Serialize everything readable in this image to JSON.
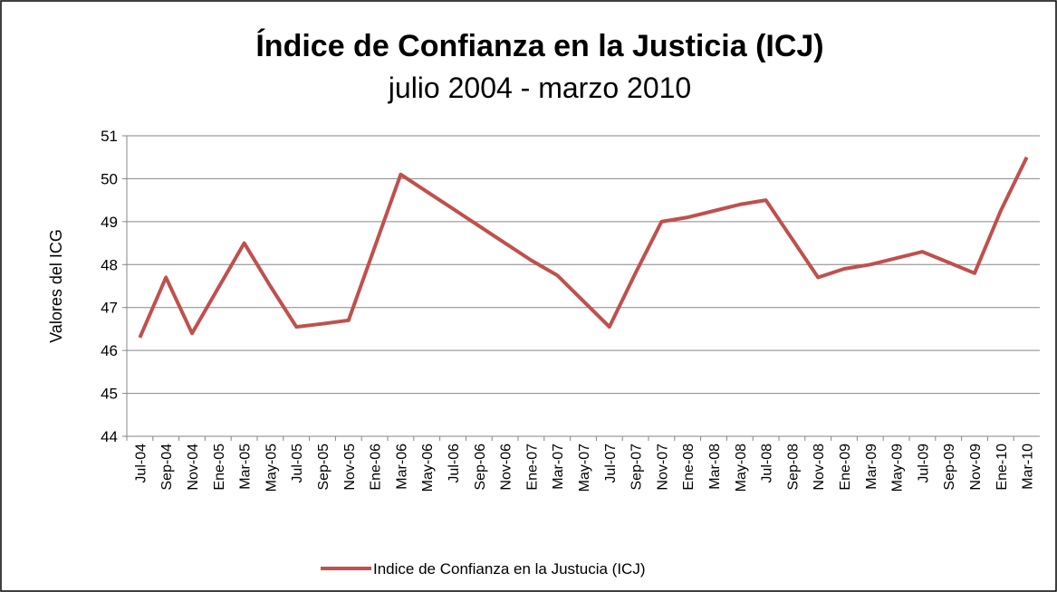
{
  "chart_data": {
    "type": "line",
    "title": "Índice de Confianza en la Justicia (ICJ)",
    "subtitle": "julio 2004 - marzo 2010",
    "y_label": "Valores del ICG",
    "categories": [
      "Jul-04",
      "Sep-04",
      "Nov-04",
      "Ene-05",
      "Mar-05",
      "May-05",
      "Jul-05",
      "Sep-05",
      "Nov-05",
      "Ene-06",
      "Mar-06",
      "May-06",
      "Jul-06",
      "Sep-06",
      "Nov-06",
      "Ene-07",
      "Mar-07",
      "May-07",
      "Jul-07",
      "Sep-07",
      "Nov-07",
      "Ene-08",
      "Mar-08",
      "May-08",
      "Jul-08",
      "Sep-08",
      "Nov-08",
      "Ene-09",
      "Mar-09",
      "May-09",
      "Jul-09",
      "Sep-09",
      "Nov-09",
      "Ene-10",
      "Mar-10"
    ],
    "series": [
      {
        "name": "Indice de Confianza en la Justucia (ICJ)",
        "color": "#c0504d",
        "values": [
          46.3,
          47.7,
          46.4,
          47.45,
          48.5,
          47.5,
          46.55,
          46.62,
          46.7,
          48.4,
          50.1,
          49.7,
          49.3,
          48.9,
          48.5,
          48.1,
          47.75,
          47.15,
          46.55,
          47.8,
          49.0,
          49.1,
          49.25,
          49.4,
          49.5,
          48.6,
          47.7,
          47.9,
          48.0,
          48.15,
          48.3,
          48.05,
          47.8,
          49.25,
          50.5
        ]
      }
    ],
    "ylim": [
      44,
      51
    ],
    "yticks": [
      44,
      45,
      46,
      47,
      48,
      49,
      50,
      51
    ],
    "grid": true,
    "legend": "bottom"
  }
}
